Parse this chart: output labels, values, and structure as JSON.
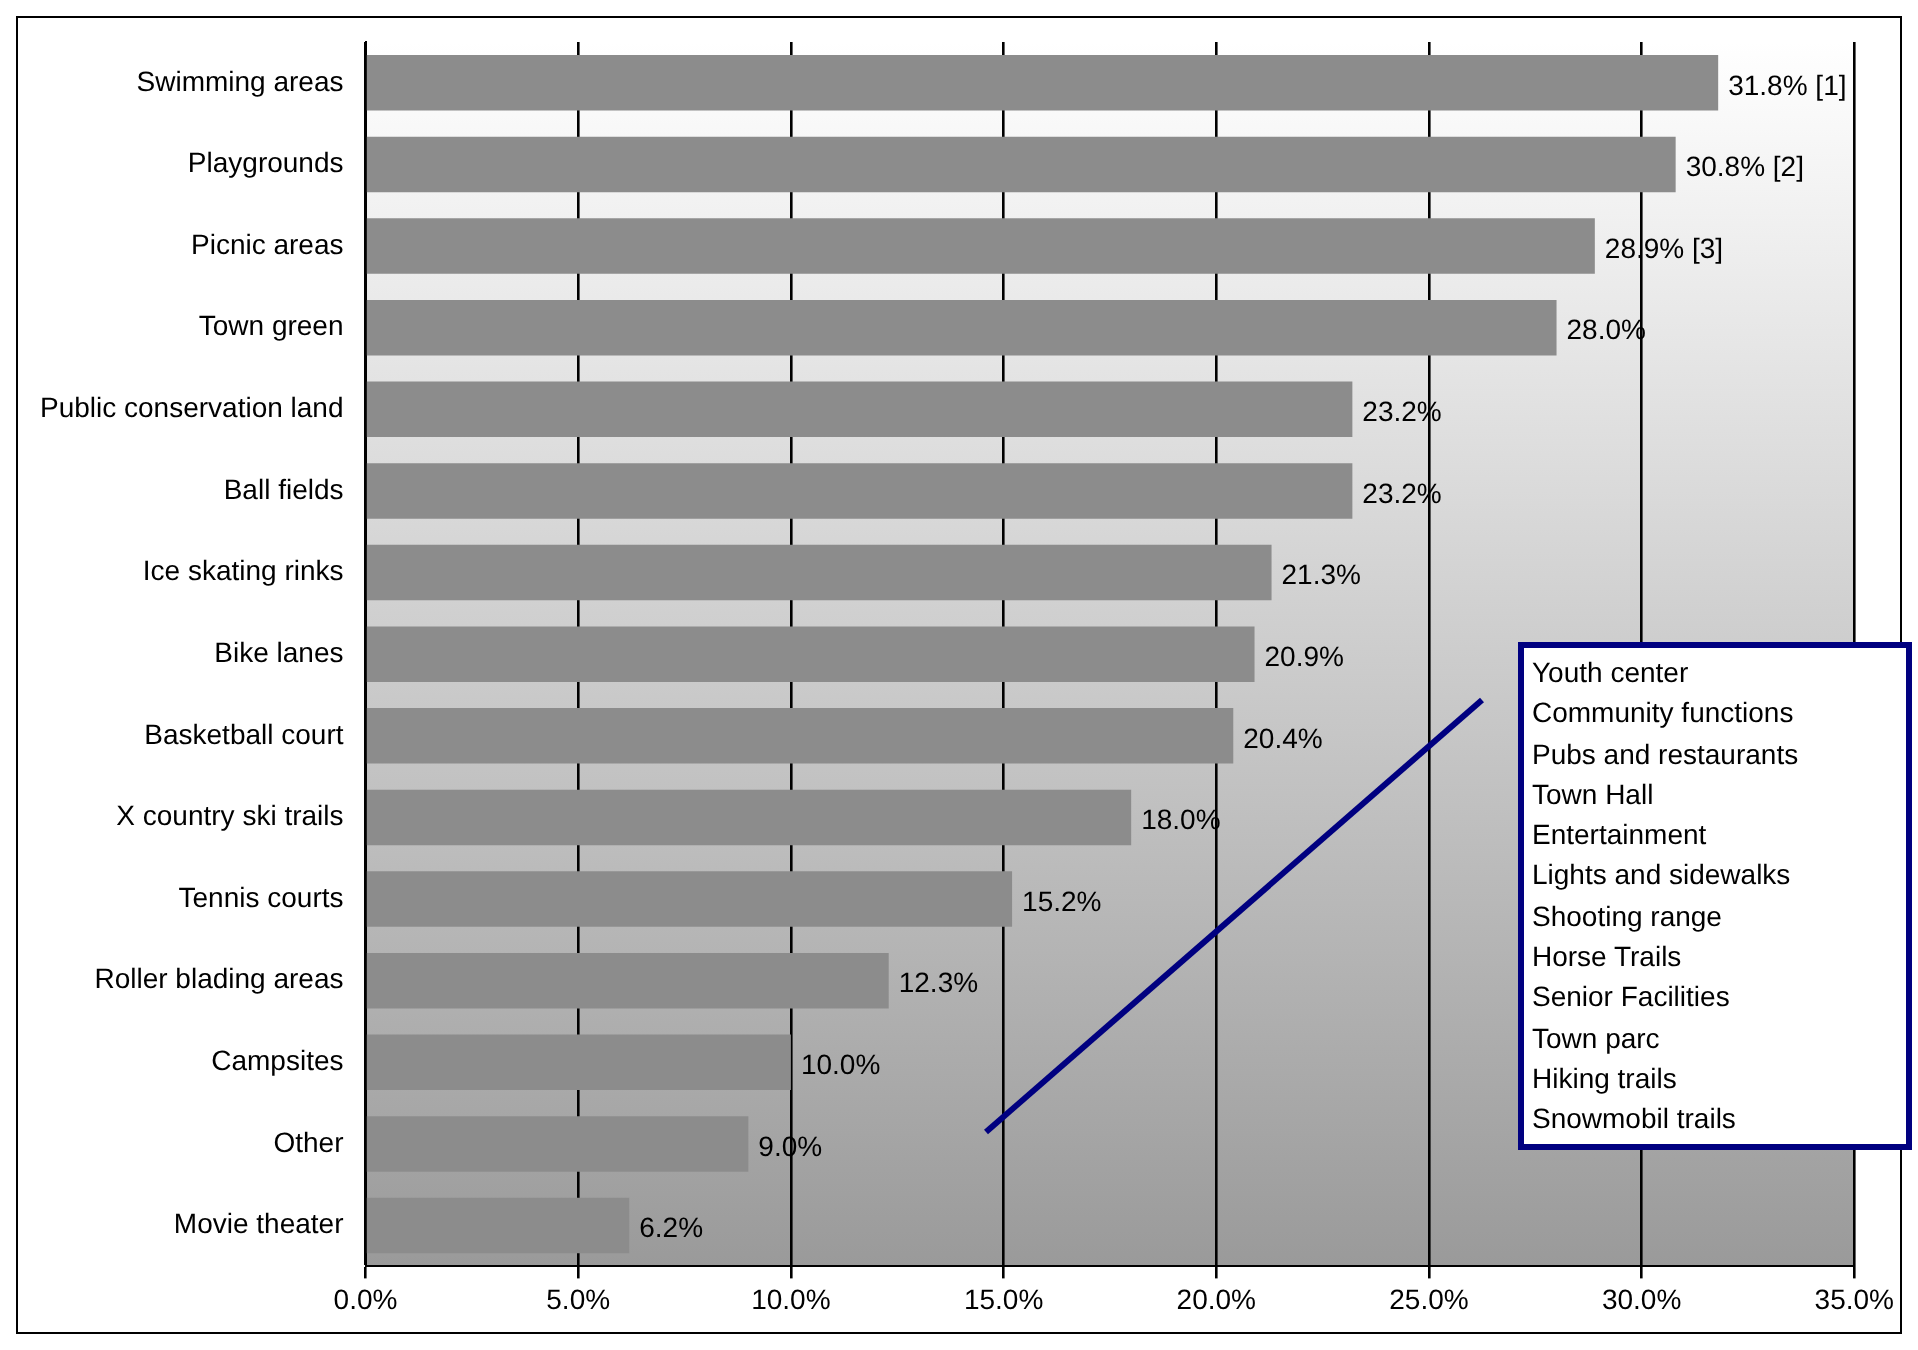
{
  "chart_data": {
    "type": "bar",
    "orientation": "horizontal",
    "categories": [
      "Swimming areas",
      "Playgrounds",
      "Picnic areas",
      "Town green",
      "Public conservation land",
      "Ball fields",
      "Ice skating rinks",
      "Bike lanes",
      "Basketball court",
      "X country ski trails",
      "Tennis courts",
      "Roller blading areas",
      "Campsites",
      "Other",
      "Movie theater"
    ],
    "values": [
      31.8,
      30.8,
      28.9,
      28.0,
      23.2,
      23.2,
      21.3,
      20.9,
      20.4,
      18.0,
      15.2,
      12.3,
      10.0,
      9.0,
      6.2
    ],
    "value_labels": [
      "31.8% [1]",
      "30.8% [2]",
      "28.9% [3]",
      "28.0%",
      "23.2%",
      "23.2%",
      "21.3%",
      "20.9%",
      "20.4%",
      "18.0%",
      "15.2%",
      "12.3%",
      "10.0%",
      "9.0%",
      "6.2%"
    ],
    "color": "#8c8c8c",
    "xlim": [
      0,
      35
    ],
    "xticks": [
      {
        "value": 0,
        "label": "0.0%"
      },
      {
        "value": 5,
        "label": "5.0%"
      },
      {
        "value": 10,
        "label": "10.0%"
      },
      {
        "value": 15,
        "label": "15.0%"
      },
      {
        "value": 20,
        "label": "20.0%"
      },
      {
        "value": 25,
        "label": "25.0%"
      },
      {
        "value": 30,
        "label": "30.0%"
      },
      {
        "value": 35,
        "label": "35.0%"
      }
    ],
    "grid": "x",
    "legend": false,
    "annotations": [
      "Youth center",
      "Community functions",
      "Pubs and restaurants",
      "Town Hall",
      "Entertainment",
      "Lights and sidewalks",
      "Shooting range",
      "Horse Trails",
      "Senior Facilities",
      "Town parc",
      "Hiking trails",
      "Snowmobil trails"
    ]
  }
}
